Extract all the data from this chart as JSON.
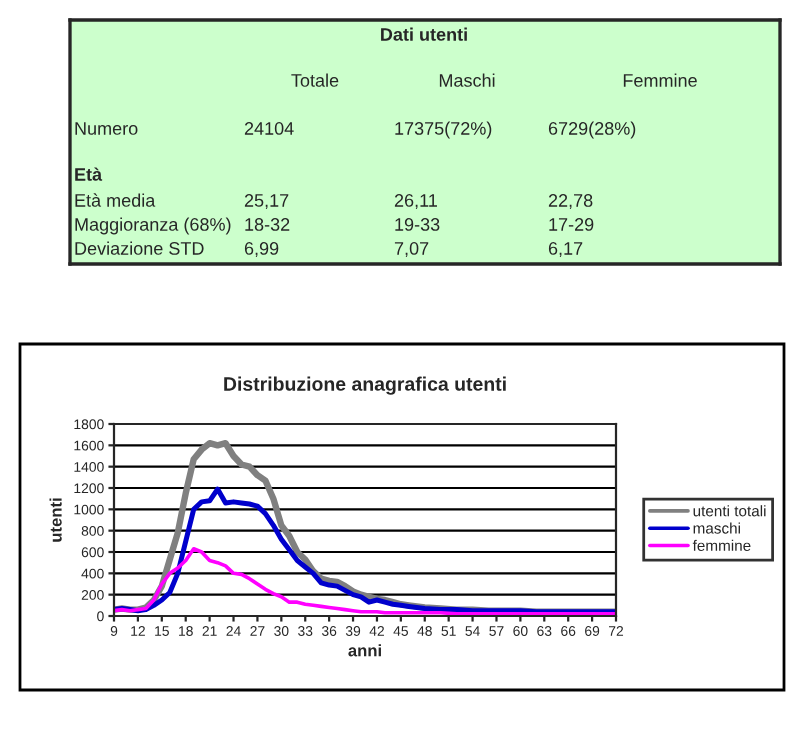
{
  "chart_data": [
    {
      "type": "other",
      "title": "Dati utenti",
      "categories": [
        "Totale",
        "Maschi",
        "Femmine"
      ],
      "y_categories": [
        "Numero",
        "Età",
        "Età media",
        "Maggioranza (68%)",
        "Deviazione STD"
      ],
      "cell_labels": [
        [
          "24104",
          "17375(72%)",
          "6729(28%)"
        ],
        [
          null,
          null,
          null
        ],
        [
          "25,17",
          "26,11",
          "22,78"
        ],
        [
          "18-32",
          "19-33",
          "17-29"
        ],
        [
          "6,99",
          "7,07",
          "6,17"
        ]
      ]
    },
    {
      "type": "line",
      "title": "Distribuzione anagrafica utenti",
      "xlabel": "anni",
      "ylabel": "utenti",
      "x": [
        9,
        10,
        11,
        12,
        13,
        14,
        15,
        16,
        17,
        18,
        19,
        20,
        21,
        22,
        23,
        24,
        25,
        26,
        27,
        28,
        29,
        30,
        31,
        32,
        33,
        34,
        35,
        36,
        37,
        38,
        39,
        40,
        41,
        42,
        43,
        44,
        45,
        46,
        47,
        48,
        50,
        52,
        54,
        56,
        58,
        60,
        62,
        64,
        66,
        68,
        70,
        72
      ],
      "series": [
        {
          "name": "utenti totali",
          "color": "#808080",
          "values": [
            60,
            70,
            60,
            60,
            80,
            150,
            280,
            530,
            780,
            1150,
            1470,
            1560,
            1620,
            1600,
            1620,
            1500,
            1420,
            1400,
            1320,
            1270,
            1100,
            850,
            750,
            600,
            530,
            420,
            350,
            330,
            320,
            280,
            230,
            200,
            180,
            160,
            150,
            130,
            110,
            100,
            90,
            80,
            70,
            60,
            60,
            50,
            50,
            50,
            40,
            40,
            40,
            40,
            40,
            40
          ]
        },
        {
          "name": "maschi",
          "color": "#0000cc",
          "values": [
            60,
            70,
            60,
            50,
            60,
            100,
            150,
            220,
            400,
            700,
            1000,
            1070,
            1080,
            1190,
            1060,
            1070,
            1060,
            1050,
            1030,
            960,
            850,
            720,
            620,
            520,
            460,
            400,
            310,
            290,
            280,
            240,
            200,
            180,
            130,
            150,
            130,
            110,
            100,
            90,
            80,
            70,
            60,
            60,
            50,
            50,
            50,
            50,
            40,
            40,
            40,
            40,
            40,
            40
          ]
        },
        {
          "name": "femmine",
          "color": "#ff00ff",
          "values": [
            50,
            60,
            50,
            60,
            70,
            150,
            300,
            400,
            450,
            520,
            630,
            600,
            520,
            500,
            470,
            400,
            390,
            350,
            300,
            250,
            210,
            180,
            130,
            130,
            110,
            100,
            90,
            80,
            70,
            60,
            50,
            40,
            40,
            40,
            30,
            30,
            30,
            30,
            30,
            30,
            30,
            20,
            20,
            20,
            20,
            20,
            20,
            20,
            20,
            20,
            20,
            20
          ]
        }
      ],
      "xlim": [
        9,
        72
      ],
      "xticks": [
        9,
        12,
        15,
        18,
        21,
        24,
        27,
        30,
        33,
        36,
        39,
        42,
        45,
        48,
        51,
        54,
        57,
        60,
        63,
        66,
        69,
        72
      ],
      "ylim": [
        0,
        1800
      ],
      "yticks": [
        0,
        200,
        400,
        600,
        800,
        1000,
        1200,
        1400,
        1600,
        1800
      ],
      "grid": "y",
      "legend": "right",
      "marker": "none",
      "line_style": "solid"
    }
  ]
}
